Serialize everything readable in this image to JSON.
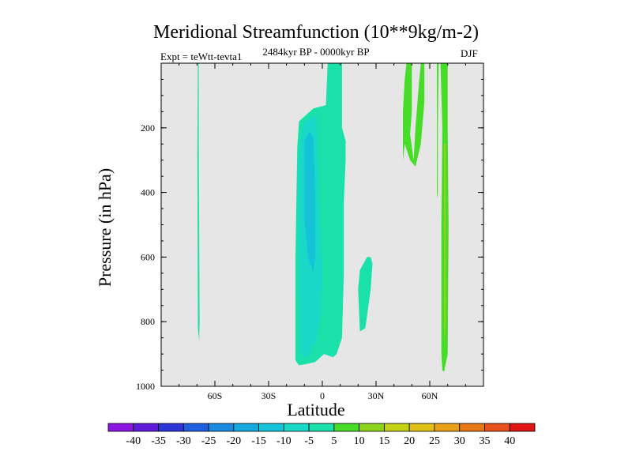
{
  "chart_data": {
    "type": "contour",
    "title": "Meridional Streamfunction (10**9kg/m-2)",
    "subtitle_left": "Expt = teWtt-tevta1",
    "subtitle_center": "2484kyr BP - 0000kyr BP",
    "subtitle_right": "DJF",
    "xlabel": "Latitude",
    "ylabel": "Pressure (in hPa)",
    "xlim": [
      -90,
      90
    ],
    "ylim": [
      1000,
      0
    ],
    "x_ticks": [
      {
        "value": -60,
        "label": "60S"
      },
      {
        "value": -30,
        "label": "30S"
      },
      {
        "value": 0,
        "label": "0"
      },
      {
        "value": 30,
        "label": "30N"
      },
      {
        "value": 60,
        "label": "60N"
      }
    ],
    "y_ticks": [
      {
        "value": 200,
        "label": "200"
      },
      {
        "value": 400,
        "label": "400"
      },
      {
        "value": 600,
        "label": "600"
      },
      {
        "value": 800,
        "label": "800"
      },
      {
        "value": 1000,
        "label": "1000"
      }
    ],
    "background_color": "#e6e6e6",
    "colorbar": {
      "labels": [
        "-40",
        "-35",
        "-30",
        "-25",
        "-20",
        "-15",
        "-10",
        "-5",
        "5",
        "10",
        "15",
        "20",
        "25",
        "30",
        "35",
        "40"
      ],
      "colors": [
        "#8a14e0",
        "#5e1ad8",
        "#2d34d8",
        "#1e5ee0",
        "#1a8ae0",
        "#14aadf",
        "#14c3d8",
        "#1ad8c8",
        "#1ae0aa",
        "#46dc28",
        "#8cd41a",
        "#c4d014",
        "#e0c014",
        "#e8a014",
        "#e87814",
        "#e8501e",
        "#e01414"
      ]
    },
    "regions": [
      {
        "name": "sh-polar-weak-negative",
        "level": "-5",
        "color": "#1ae0aa",
        "points": [
          [
            -69.5,
            0
          ],
          [
            -69.0,
            0
          ],
          [
            -69.0,
            280
          ],
          [
            -68.5,
            800
          ],
          [
            -68.8,
            860
          ],
          [
            -69.5,
            820
          ],
          [
            -69.8,
            280
          ]
        ]
      },
      {
        "name": "equatorial-negative-outer",
        "level": "-5",
        "color": "#1ae0aa",
        "points": [
          [
            3,
            0
          ],
          [
            4,
            0
          ],
          [
            5,
            0
          ],
          [
            7,
            0
          ],
          [
            9,
            0
          ],
          [
            11,
            0
          ],
          [
            11,
            200
          ],
          [
            13,
            240
          ],
          [
            13,
            300
          ],
          [
            12,
            430
          ],
          [
            12,
            650
          ],
          [
            11,
            850
          ],
          [
            8,
            900
          ],
          [
            6,
            910
          ],
          [
            1,
            900
          ],
          [
            -4,
            925
          ],
          [
            -8,
            930
          ],
          [
            -13,
            935
          ],
          [
            -15,
            920
          ],
          [
            -15,
            600
          ],
          [
            -14,
            260
          ],
          [
            -13,
            180
          ],
          [
            -5,
            140
          ],
          [
            2,
            130
          ],
          [
            3,
            0
          ]
        ]
      },
      {
        "name": "equatorial-negative-inner",
        "level": "-10",
        "color": "#1ad8c8",
        "points": [
          [
            -12,
            230
          ],
          [
            -10,
            180
          ],
          [
            -3,
            160
          ],
          [
            -2,
            400
          ],
          [
            0,
            650
          ],
          [
            -1,
            780
          ],
          [
            -3,
            850
          ],
          [
            -8,
            910
          ],
          [
            -12,
            900
          ],
          [
            -13,
            600
          ],
          [
            -13,
            300
          ]
        ]
      },
      {
        "name": "equatorial-negative-core",
        "level": "-15",
        "color": "#14c3d8",
        "points": [
          [
            -10,
            240
          ],
          [
            -7,
            210
          ],
          [
            -5,
            230
          ],
          [
            -4,
            400
          ],
          [
            -4,
            600
          ],
          [
            -5,
            650
          ],
          [
            -8,
            600
          ],
          [
            -10,
            480
          ]
        ]
      },
      {
        "name": "nh-subtropical-negative",
        "level": "-5",
        "color": "#1ae0aa",
        "points": [
          [
            21,
            640
          ],
          [
            23,
            620
          ],
          [
            25,
            600
          ],
          [
            27,
            600
          ],
          [
            28,
            620
          ],
          [
            27,
            700
          ],
          [
            25,
            780
          ],
          [
            24,
            820
          ],
          [
            21,
            830
          ],
          [
            20,
            700
          ]
        ]
      },
      {
        "name": "nh-upper-positive-band",
        "level": "5",
        "color": "#46dc28",
        "points": [
          [
            47,
            0
          ],
          [
            50,
            0
          ],
          [
            50,
            150
          ],
          [
            49,
            220
          ],
          [
            51,
            300
          ],
          [
            52,
            200
          ],
          [
            54,
            60
          ],
          [
            55,
            0
          ],
          [
            57,
            0
          ],
          [
            57,
            120
          ],
          [
            55,
            250
          ],
          [
            52,
            320
          ],
          [
            49,
            300
          ],
          [
            46,
            250
          ],
          [
            45,
            300
          ],
          [
            45,
            150
          ],
          [
            46,
            50
          ]
        ]
      },
      {
        "name": "nh-thin-positive-line",
        "level": "5",
        "color": "#46dc28",
        "points": [
          [
            64,
            0
          ],
          [
            65,
            0
          ],
          [
            64.5,
            200
          ],
          [
            64.5,
            400
          ],
          [
            64,
            420
          ],
          [
            64,
            200
          ]
        ]
      },
      {
        "name": "nh-high-latitude-positive",
        "level": "5",
        "color": "#46dc28",
        "points": [
          [
            66,
            0
          ],
          [
            70,
            0
          ],
          [
            70,
            200
          ],
          [
            70.5,
            500
          ],
          [
            70,
            900
          ],
          [
            68,
            955
          ],
          [
            67,
            950
          ],
          [
            66.5,
            900
          ],
          [
            66.5,
            500
          ],
          [
            67,
            200
          ]
        ]
      },
      {
        "name": "nh-high-latitude-positive-core",
        "level": "10",
        "color": "#8cd41a",
        "points": [
          [
            68,
            250
          ],
          [
            69,
            250
          ],
          [
            69,
            800
          ],
          [
            68.3,
            860
          ],
          [
            68,
            800
          ]
        ]
      }
    ]
  }
}
